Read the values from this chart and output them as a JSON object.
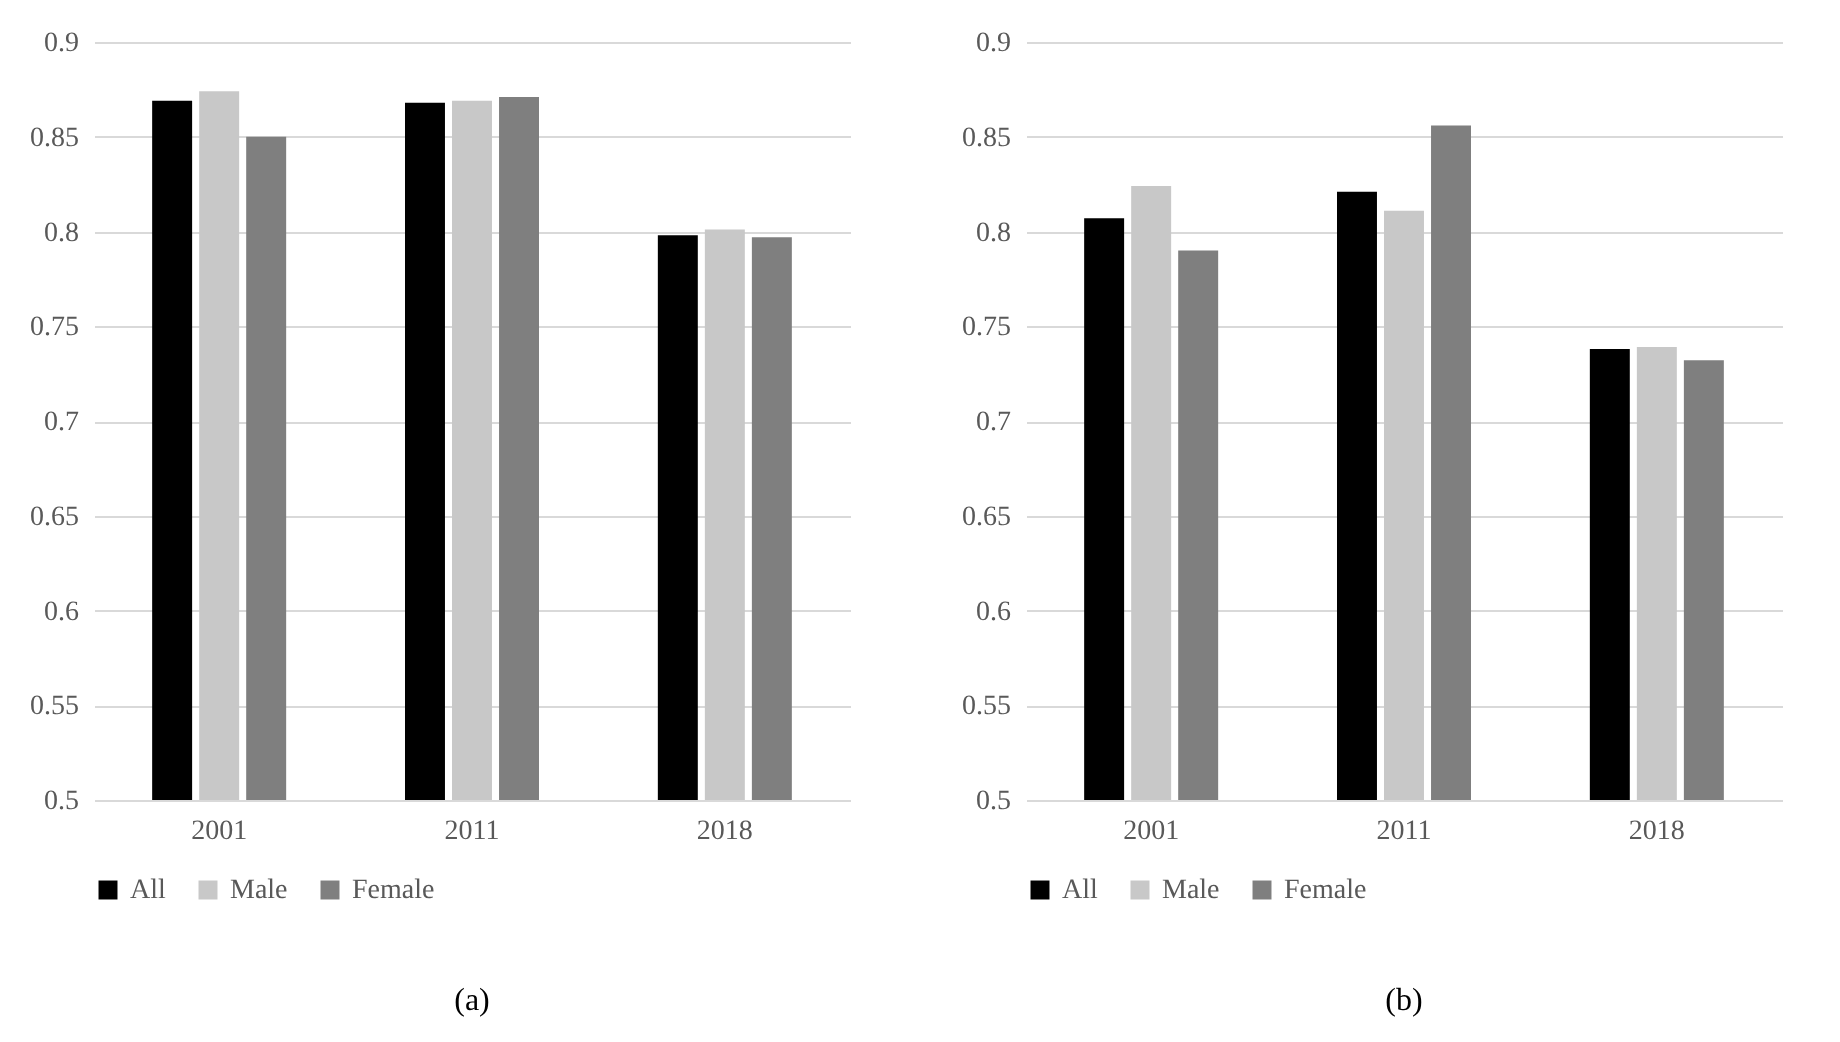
{
  "chart_data": [
    {
      "type": "bar",
      "title": "(a)",
      "categories": [
        "2001",
        "2011",
        "2018"
      ],
      "series": [
        {
          "name": "All",
          "color": "#000000",
          "values": [
            0.869,
            0.868,
            0.798
          ]
        },
        {
          "name": "Male",
          "color": "#c8c8c8",
          "values": [
            0.874,
            0.869,
            0.801
          ]
        },
        {
          "name": "Female",
          "color": "#7f7f7f",
          "values": [
            0.85,
            0.871,
            0.797
          ]
        }
      ],
      "ylim": [
        0.5,
        0.9
      ],
      "yticks": [
        0.5,
        0.55,
        0.6,
        0.65,
        0.7,
        0.75,
        0.8,
        0.85,
        0.9
      ],
      "grid": "y",
      "legend": "bottom"
    },
    {
      "type": "bar",
      "title": "(b)",
      "categories": [
        "2001",
        "2011",
        "2018"
      ],
      "series": [
        {
          "name": "All",
          "color": "#000000",
          "values": [
            0.807,
            0.821,
            0.738
          ]
        },
        {
          "name": "Male",
          "color": "#c8c8c8",
          "values": [
            0.824,
            0.811,
            0.739
          ]
        },
        {
          "name": "Female",
          "color": "#7f7f7f",
          "values": [
            0.79,
            0.856,
            0.732
          ]
        }
      ],
      "ylim": [
        0.5,
        0.9
      ],
      "yticks": [
        0.5,
        0.55,
        0.6,
        0.65,
        0.7,
        0.75,
        0.8,
        0.85,
        0.9
      ],
      "grid": "y",
      "legend": "bottom"
    }
  ]
}
